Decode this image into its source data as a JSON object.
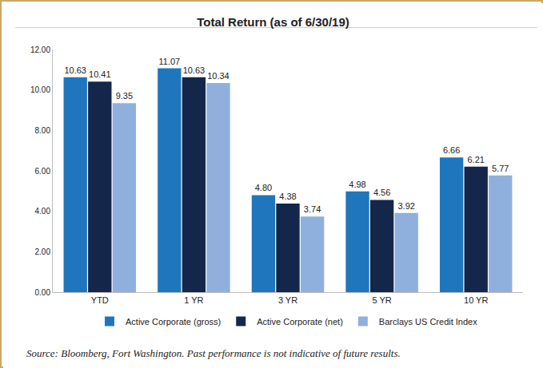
{
  "chart_data": {
    "type": "bar",
    "title": "Total Return (as of 6/30/19)",
    "note": "Source: Bloomberg, Fort Washington. Past performance is not indicative of future results.",
    "categories": [
      "YTD",
      "1 YR",
      "3 YR",
      "5 YR",
      "10 YR"
    ],
    "series": [
      {
        "name": "Active Corporate (gross)",
        "color": "#1f76bd",
        "values": [
          10.63,
          11.07,
          4.8,
          4.98,
          6.66
        ],
        "value_labels": [
          "10.63",
          "11.07",
          "4.80",
          "4.98",
          "6.66"
        ]
      },
      {
        "name": "Active Corporate (net)",
        "color": "#14264a",
        "values": [
          10.41,
          10.63,
          4.38,
          4.56,
          6.21
        ],
        "value_labels": [
          "10.41",
          "10.63",
          "4.38",
          "4.56",
          "6.21"
        ]
      },
      {
        "name": "Barclays US Credit Index",
        "color": "#8fb0dc",
        "values": [
          9.35,
          10.34,
          3.74,
          3.92,
          5.77
        ],
        "value_labels": [
          "9.35",
          "10.34",
          "3.74",
          "3.92",
          "5.77"
        ]
      }
    ],
    "ylim": [
      0,
      12
    ],
    "yticks": [
      {
        "value": 0,
        "label": "0.00"
      },
      {
        "value": 2,
        "label": "2.00"
      },
      {
        "value": 4,
        "label": "4.00"
      },
      {
        "value": 6,
        "label": "6.00"
      },
      {
        "value": 8,
        "label": "8.00"
      },
      {
        "value": 10,
        "label": "10.00"
      },
      {
        "value": 12,
        "label": "12.00"
      }
    ],
    "grid": false,
    "legend": "bottom",
    "data_labels": true
  }
}
